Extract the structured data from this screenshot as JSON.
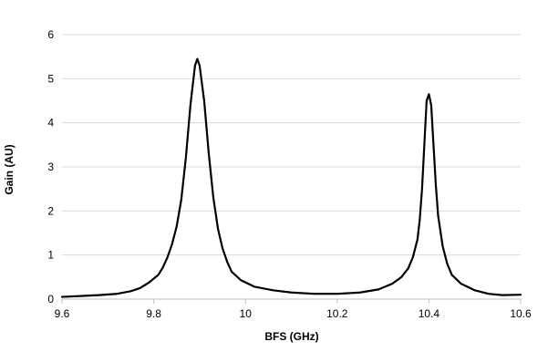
{
  "chart_data": {
    "type": "line",
    "title": "",
    "xlabel": "BFS (GHz)",
    "ylabel": "Gain (AU)",
    "xlim": [
      9.6,
      10.6
    ],
    "ylim": [
      0,
      6
    ],
    "x_ticks": [
      "9.6",
      "9.8",
      "10",
      "10.2",
      "10.4",
      "10.6"
    ],
    "x_tick_values": [
      9.6,
      9.8,
      10.0,
      10.2,
      10.4,
      10.6
    ],
    "y_ticks": [
      "0",
      "1",
      "2",
      "3",
      "4",
      "5",
      "6"
    ],
    "y_tick_values": [
      0,
      1,
      2,
      3,
      4,
      5,
      6
    ],
    "grid": "horizontal",
    "legend": "none",
    "series": [
      {
        "color": "#000000",
        "points": [
          [
            9.6,
            0.05
          ],
          [
            9.64,
            0.07
          ],
          [
            9.68,
            0.09
          ],
          [
            9.72,
            0.12
          ],
          [
            9.75,
            0.18
          ],
          [
            9.77,
            0.25
          ],
          [
            9.79,
            0.38
          ],
          [
            9.81,
            0.55
          ],
          [
            9.82,
            0.72
          ],
          [
            9.83,
            0.95
          ],
          [
            9.84,
            1.25
          ],
          [
            9.85,
            1.65
          ],
          [
            9.86,
            2.25
          ],
          [
            9.87,
            3.2
          ],
          [
            9.88,
            4.4
          ],
          [
            9.89,
            5.3
          ],
          [
            9.895,
            5.45
          ],
          [
            9.9,
            5.3
          ],
          [
            9.91,
            4.5
          ],
          [
            9.92,
            3.3
          ],
          [
            9.93,
            2.3
          ],
          [
            9.94,
            1.6
          ],
          [
            9.95,
            1.15
          ],
          [
            9.96,
            0.85
          ],
          [
            9.97,
            0.62
          ],
          [
            9.99,
            0.43
          ],
          [
            10.02,
            0.28
          ],
          [
            10.06,
            0.2
          ],
          [
            10.1,
            0.15
          ],
          [
            10.15,
            0.12
          ],
          [
            10.2,
            0.12
          ],
          [
            10.25,
            0.15
          ],
          [
            10.29,
            0.22
          ],
          [
            10.32,
            0.35
          ],
          [
            10.34,
            0.5
          ],
          [
            10.355,
            0.7
          ],
          [
            10.365,
            0.95
          ],
          [
            10.375,
            1.35
          ],
          [
            10.38,
            1.8
          ],
          [
            10.385,
            2.5
          ],
          [
            10.39,
            3.5
          ],
          [
            10.395,
            4.5
          ],
          [
            10.4,
            4.65
          ],
          [
            10.405,
            4.4
          ],
          [
            10.41,
            3.5
          ],
          [
            10.415,
            2.6
          ],
          [
            10.42,
            1.9
          ],
          [
            10.43,
            1.2
          ],
          [
            10.44,
            0.8
          ],
          [
            10.45,
            0.55
          ],
          [
            10.47,
            0.35
          ],
          [
            10.5,
            0.2
          ],
          [
            10.53,
            0.12
          ],
          [
            10.56,
            0.09
          ],
          [
            10.6,
            0.1
          ]
        ]
      }
    ]
  }
}
